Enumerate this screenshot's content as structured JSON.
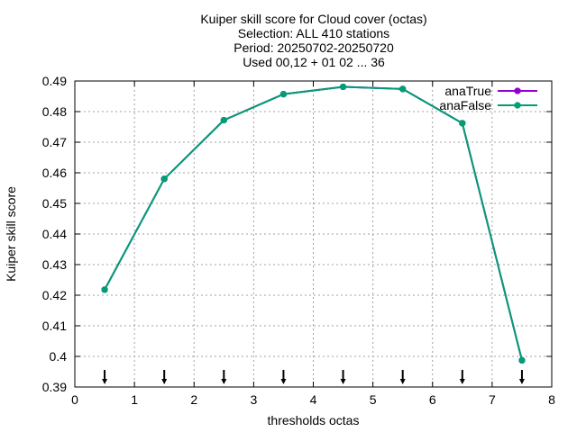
{
  "chart_data": {
    "type": "line",
    "title_lines": [
      "Kuiper skill score  for Cloud cover (octas)",
      "Selection: ALL    410 stations",
      "Period: 20250702-20250720",
      "Used 00,12 + 01 02 ... 36"
    ],
    "xlabel": "thresholds octas",
    "ylabel": "Kuiper skill score",
    "xlim": [
      0,
      8
    ],
    "ylim": [
      0.39,
      0.49
    ],
    "xticks": [
      0,
      1,
      2,
      3,
      4,
      5,
      6,
      7,
      8
    ],
    "yticks": [
      0.39,
      0.4,
      0.41,
      0.42,
      0.43,
      0.44,
      0.45,
      0.46,
      0.47,
      0.48,
      0.49
    ],
    "grid": true,
    "legend_position": "top-right",
    "series": [
      {
        "name": "anaTrue",
        "color": "#9400d3",
        "x": [
          0.5,
          1.5,
          2.5,
          3.5,
          4.5,
          5.5,
          6.5,
          7.5
        ],
        "y": [
          0.4218,
          0.458,
          0.4772,
          0.4857,
          0.4881,
          0.4874,
          0.4762,
          0.3987
        ]
      },
      {
        "name": "anaFalse",
        "color": "#009e73",
        "x": [
          0.5,
          1.5,
          2.5,
          3.5,
          4.5,
          5.5,
          6.5,
          7.5
        ],
        "y": [
          0.4218,
          0.458,
          0.4772,
          0.4857,
          0.4881,
          0.4874,
          0.4762,
          0.3987
        ]
      }
    ],
    "arrow_markers_x": [
      0.5,
      1.5,
      2.5,
      3.5,
      4.5,
      5.5,
      6.5,
      7.5
    ]
  }
}
